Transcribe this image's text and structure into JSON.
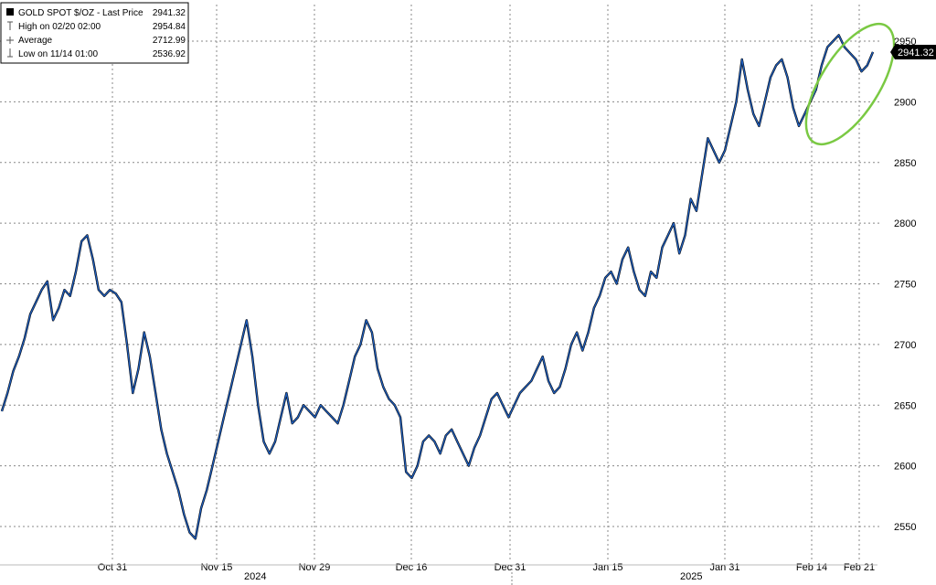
{
  "legend": {
    "title": "GOLD SPOT $/OZ - Last Price",
    "title_value": "2941.32",
    "rows": [
      {
        "label": "High on 02/20 02:00",
        "value": "2954.84"
      },
      {
        "label": "Average",
        "value": "2712.99"
      },
      {
        "label": "Low on 11/14 01:00",
        "value": "2536.92"
      }
    ]
  },
  "last_price_tag": "2941.32",
  "colors": {
    "price_line": "#1f5fbf",
    "price_shadow": "#000000",
    "grid": "#888888",
    "highlight_ellipse": "#7ac943",
    "tag_bg": "#000000",
    "tag_text": "#ffffff"
  },
  "chart_data": {
    "type": "line",
    "title": "GOLD SPOT $/OZ",
    "ylim": [
      2530,
      2980
    ],
    "y_ticks": [
      2550,
      2600,
      2650,
      2700,
      2750,
      2800,
      2850,
      2900,
      2950
    ],
    "x_ticks": [
      "Oct 31",
      "Nov 15",
      "Nov 29",
      "Dec 16",
      "Dec 31",
      "Jan 15",
      "Jan 31",
      "Feb 14",
      "Feb 21"
    ],
    "year_labels": [
      "2024",
      "2025"
    ],
    "grid": true,
    "highlight": "ellipse around latest Feb 14 – Feb 21 prices near 2900–2955",
    "series": [
      {
        "values": [
          2645,
          2660,
          2678,
          2690,
          2705,
          2725,
          2735,
          2745,
          2752,
          2720,
          2730,
          2745,
          2740,
          2760,
          2785,
          2790,
          2770,
          2745,
          2740,
          2745,
          2742,
          2735,
          2700,
          2660,
          2680,
          2710,
          2690,
          2660,
          2630,
          2610,
          2595,
          2580,
          2560,
          2545,
          2540,
          2565,
          2580,
          2600,
          2620,
          2640,
          2660,
          2680,
          2700,
          2720,
          2690,
          2650,
          2620,
          2610,
          2620,
          2640,
          2660,
          2635,
          2640,
          2650,
          2645,
          2640,
          2650,
          2645,
          2640,
          2635,
          2650,
          2670,
          2690,
          2700,
          2720,
          2710,
          2680,
          2665,
          2655,
          2650,
          2640,
          2595,
          2590,
          2600,
          2620,
          2625,
          2620,
          2610,
          2625,
          2630,
          2620,
          2610,
          2600,
          2615,
          2625,
          2640,
          2655,
          2660,
          2650,
          2640,
          2650,
          2660,
          2665,
          2670,
          2680,
          2690,
          2670,
          2660,
          2665,
          2680,
          2700,
          2710,
          2695,
          2710,
          2730,
          2740,
          2755,
          2760,
          2750,
          2770,
          2780,
          2760,
          2745,
          2740,
          2760,
          2755,
          2780,
          2790,
          2800,
          2775,
          2790,
          2820,
          2810,
          2840,
          2870,
          2860,
          2850,
          2860,
          2880,
          2900,
          2935,
          2910,
          2890,
          2880,
          2900,
          2920,
          2930,
          2935,
          2920,
          2895,
          2880,
          2890,
          2900,
          2910,
          2930,
          2945,
          2950,
          2955,
          2945,
          2940,
          2935,
          2925,
          2930,
          2941
        ]
      }
    ]
  }
}
